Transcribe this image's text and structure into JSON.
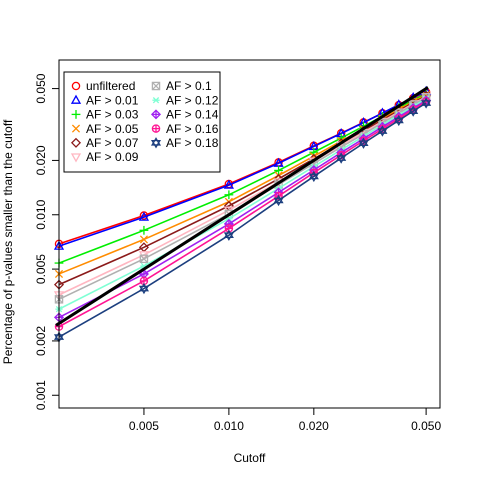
{
  "chart_data": {
    "type": "line",
    "title": "",
    "xlabel": "Cutoff",
    "ylabel": "Percentage of p-values smaller than the cutoff",
    "x_scale": "log",
    "y_scale": "log",
    "xlim": [
      0.0025,
      0.056
    ],
    "ylim": [
      0.00085,
      0.072
    ],
    "x_ticks": [
      {
        "value": 0.005,
        "label": "0.005"
      },
      {
        "value": 0.01,
        "label": "0.010"
      },
      {
        "value": 0.02,
        "label": "0.020"
      },
      {
        "value": 0.05,
        "label": "0.050"
      }
    ],
    "y_ticks": [
      {
        "value": 0.001,
        "label": "0.001"
      },
      {
        "value": 0.002,
        "label": "0.002"
      },
      {
        "value": 0.005,
        "label": "0.005"
      },
      {
        "value": 0.01,
        "label": "0.010"
      },
      {
        "value": 0.02,
        "label": "0.020"
      },
      {
        "value": 0.05,
        "label": "0.050"
      }
    ],
    "grid": false,
    "legend_position": "top-left",
    "reference_line": {
      "description": "identity line y = x",
      "color": "#000000"
    },
    "x": [
      0.0025,
      0.005,
      0.01,
      0.015,
      0.02,
      0.025,
      0.03,
      0.035,
      0.04,
      0.045,
      0.05
    ],
    "series": [
      {
        "name": "unfiltered",
        "color": "#ff0000",
        "marker": "circle",
        "values": [
          0.0069,
          0.0099,
          0.0148,
          0.0195,
          0.0241,
          0.0283,
          0.0325,
          0.0365,
          0.0405,
          0.0443,
          0.0478
        ]
      },
      {
        "name": "AF > 0.01",
        "color": "#0000ff",
        "marker": "triangle",
        "values": [
          0.0067,
          0.0097,
          0.0146,
          0.0193,
          0.0239,
          0.0282,
          0.0324,
          0.0366,
          0.0407,
          0.0446,
          0.0483
        ]
      },
      {
        "name": "AF > 0.03",
        "color": "#00ee00",
        "marker": "plus",
        "values": [
          0.0054,
          0.0082,
          0.0129,
          0.0176,
          0.0222,
          0.0266,
          0.0309,
          0.0351,
          0.0392,
          0.0432,
          0.0469
        ]
      },
      {
        "name": "AF > 0.05",
        "color": "#ff8c00",
        "marker": "x",
        "values": [
          0.0047,
          0.0073,
          0.0118,
          0.0165,
          0.0211,
          0.0256,
          0.0299,
          0.0341,
          0.0383,
          0.0424,
          0.0462
        ]
      },
      {
        "name": "AF > 0.07",
        "color": "#8b1a1a",
        "marker": "diamond",
        "values": [
          0.0041,
          0.0066,
          0.0112,
          0.0158,
          0.0204,
          0.0249,
          0.0292,
          0.0335,
          0.0377,
          0.0418,
          0.0456
        ]
      },
      {
        "name": "AF > 0.09",
        "color": "#ffb6c1",
        "marker": "triangle-down",
        "values": [
          0.0036,
          0.006,
          0.0106,
          0.0152,
          0.0198,
          0.0243,
          0.0286,
          0.0329,
          0.0371,
          0.0412,
          0.0451
        ]
      },
      {
        "name": "AF > 0.1",
        "color": "#b0b0b0",
        "marker": "square-x",
        "values": [
          0.0034,
          0.0057,
          0.0101,
          0.0147,
          0.0192,
          0.0237,
          0.028,
          0.0323,
          0.0365,
          0.0407,
          0.0446
        ]
      },
      {
        "name": "AF > 0.12",
        "color": "#7fffd4",
        "marker": "asterisk",
        "values": [
          0.003,
          0.0052,
          0.0095,
          0.014,
          0.0185,
          0.0229,
          0.0272,
          0.0315,
          0.0357,
          0.0399,
          0.0438
        ]
      },
      {
        "name": "AF > 0.14",
        "color": "#a020f0",
        "marker": "diamond-plus",
        "values": [
          0.0027,
          0.0047,
          0.0089,
          0.0133,
          0.0177,
          0.0221,
          0.0264,
          0.0307,
          0.0349,
          0.039,
          0.043
        ]
      },
      {
        "name": "AF > 0.16",
        "color": "#ff1493",
        "marker": "circle-plus",
        "values": [
          0.0024,
          0.0043,
          0.0084,
          0.0127,
          0.0171,
          0.0214,
          0.0257,
          0.0299,
          0.0341,
          0.0383,
          0.0423
        ]
      },
      {
        "name": "AF > 0.18",
        "color": "#1c3f7f",
        "marker": "star",
        "values": [
          0.0021,
          0.0039,
          0.0077,
          0.012,
          0.0163,
          0.0206,
          0.0249,
          0.0291,
          0.0333,
          0.0375,
          0.0416
        ]
      }
    ]
  }
}
